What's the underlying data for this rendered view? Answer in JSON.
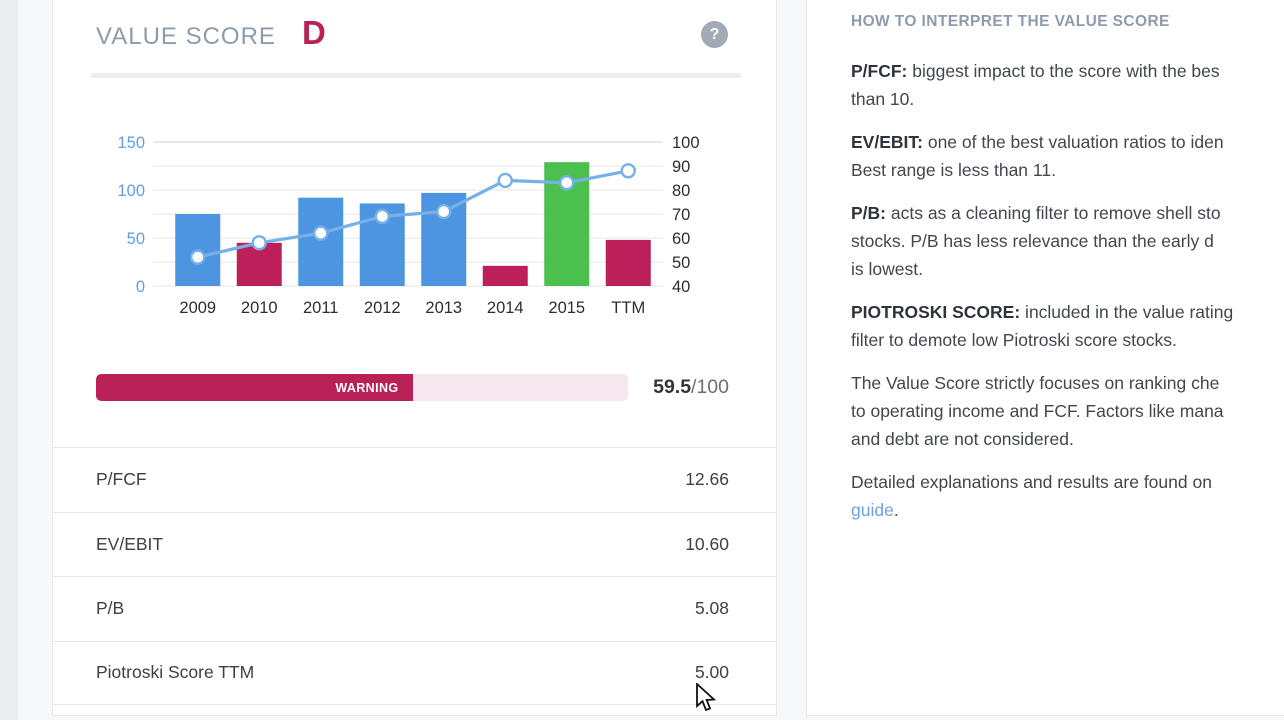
{
  "left_card": {
    "title": "VALUE SCORE",
    "grade": "D",
    "help_icon": "?",
    "chart_data": {
      "type": "bar",
      "categories": [
        "2009",
        "2010",
        "2011",
        "2012",
        "2013",
        "2014",
        "2015",
        "TTM"
      ],
      "series": [
        {
          "name": "valuation-bars",
          "type": "bar",
          "axis": "left",
          "values": [
            75,
            45,
            92,
            86,
            97,
            21,
            129,
            48
          ],
          "colors": [
            "#4d95e0",
            "#bc1f5a",
            "#4d95e0",
            "#4d95e0",
            "#4d95e0",
            "#bc1f5a",
            "#4bc04f",
            "#bc1f5a"
          ]
        },
        {
          "name": "score-line",
          "type": "line",
          "axis": "right",
          "values": [
            52,
            58,
            62,
            69,
            71,
            84,
            83,
            88
          ],
          "color": "#76b0e8",
          "marker_fill": "#ffffff"
        }
      ],
      "left_axis": {
        "ticks": [
          0,
          50,
          100,
          150
        ],
        "range": [
          0,
          150
        ],
        "color": "#5f9fde"
      },
      "right_axis": {
        "ticks": [
          40,
          50,
          60,
          70,
          80,
          90,
          100
        ],
        "range": [
          40,
          100
        ],
        "color": "#2d2d34"
      },
      "grid": true,
      "legend": false,
      "title": "",
      "xlabel": "",
      "ylabel": ""
    },
    "score_bar": {
      "warning_label": "WARNING",
      "percent": 59.5,
      "score": "59.5",
      "denominator": "/100"
    },
    "metrics": [
      {
        "label": "P/FCF",
        "value": "12.66"
      },
      {
        "label": "EV/EBIT",
        "value": "10.60"
      },
      {
        "label": "P/B",
        "value": "5.08"
      },
      {
        "label": "Piotroski Score TTM",
        "value": "5.00"
      }
    ]
  },
  "right_card": {
    "heading": "HOW TO INTERPRET THE VALUE SCORE",
    "paragraphs": [
      {
        "lead": "P/FCF:",
        "lines": [
          "biggest impact to the score with the bes",
          "than 10."
        ]
      },
      {
        "lead": "EV/EBIT:",
        "lines": [
          "one of the best valuation ratios to iden",
          "Best range is less than 11."
        ]
      },
      {
        "lead": "P/B:",
        "lines": [
          "acts as a cleaning filter to remove shell sto",
          "stocks. P/B has less relevance than the early d",
          "is lowest."
        ]
      },
      {
        "lead": "PIOTROSKI SCORE:",
        "lines": [
          "included in the value rating",
          "filter to demote low Piotroski score stocks."
        ]
      },
      {
        "lead": "",
        "lines": [
          "The Value Score strictly focuses on ranking che",
          "to operating income and FCF. Factors like mana",
          "and debt are not considered."
        ]
      },
      {
        "lead": "",
        "lines": [
          "Detailed explanations and results are found on"
        ],
        "link": "guide",
        "after_link": "."
      }
    ]
  },
  "colors": {
    "accent_crimson": "#b92056",
    "bar_blue": "#4d95e0",
    "bar_green": "#4bc04f",
    "line_blue": "#76b0e8",
    "heading_gray_blue": "#8d9bad",
    "track_pink": "#f6e7ee",
    "link_blue": "#6fa0e2"
  }
}
